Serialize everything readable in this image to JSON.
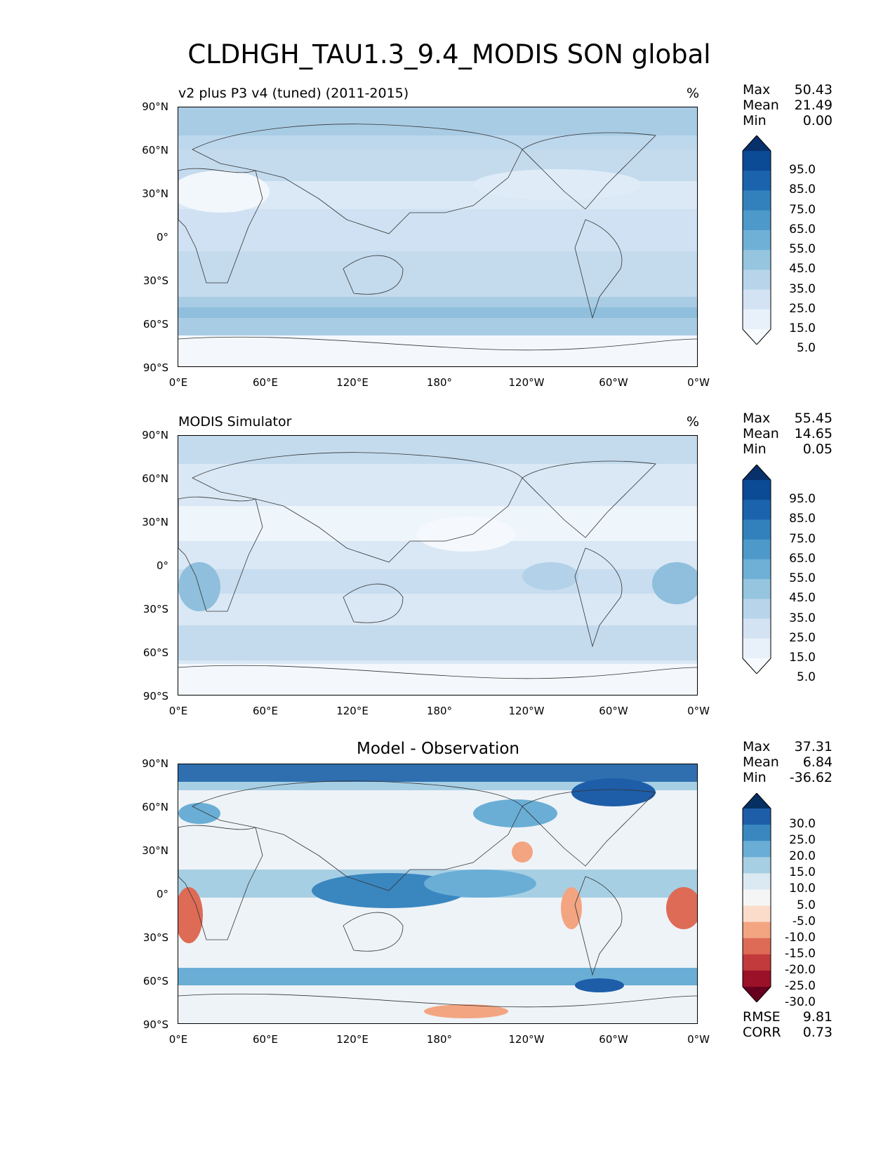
{
  "title": "CLDHGH_TAU1.3_9.4_MODIS SON global",
  "axes": {
    "lat_ticks": [
      "90°N",
      "60°N",
      "30°N",
      "0°",
      "30°S",
      "60°S",
      "90°S"
    ],
    "lon_ticks": [
      "0°E",
      "60°E",
      "120°E",
      "180°",
      "120°W",
      "60°W",
      "0°W"
    ]
  },
  "panels": [
    {
      "subtitle": "v2 plus P3 v4 (tuned) (2011-2015)",
      "units": "%",
      "stats": [
        {
          "label": "Max",
          "value": "50.43"
        },
        {
          "label": "Mean",
          "value": "21.49"
        },
        {
          "label": "Min",
          "value": "0.00"
        }
      ],
      "colorbar": {
        "labels": [
          "95.0",
          "85.0",
          "75.0",
          "65.0",
          "55.0",
          "45.0",
          "35.0",
          "25.0",
          "15.0",
          "5.0"
        ],
        "colors": [
          "#08306b",
          "#0b4a94",
          "#1b64ad",
          "#3281bd",
          "#4d99c9",
          "#6fb0d7",
          "#95c5df",
          "#b7d4ea",
          "#d3e3f3",
          "#e8f1fa",
          "#f7fbff"
        ]
      }
    },
    {
      "subtitle": "MODIS Simulator",
      "units": "%",
      "stats": [
        {
          "label": "Max",
          "value": "55.45"
        },
        {
          "label": "Mean",
          "value": "14.65"
        },
        {
          "label": "Min",
          "value": "0.05"
        }
      ],
      "colorbar": {
        "labels": [
          "95.0",
          "85.0",
          "75.0",
          "65.0",
          "55.0",
          "45.0",
          "35.0",
          "25.0",
          "15.0",
          "5.0"
        ],
        "colors": [
          "#08306b",
          "#0b4a94",
          "#1b64ad",
          "#3281bd",
          "#4d99c9",
          "#6fb0d7",
          "#95c5df",
          "#b7d4ea",
          "#d3e3f3",
          "#e8f1fa",
          "#f7fbff"
        ]
      }
    },
    {
      "subtitle": "Model - Observation",
      "units": "",
      "stats": [
        {
          "label": "Max",
          "value": "37.31"
        },
        {
          "label": "Mean",
          "value": "6.84"
        },
        {
          "label": "Min",
          "value": "-36.62"
        }
      ],
      "colorbar": {
        "labels": [
          "30.0",
          "25.0",
          "20.0",
          "15.0",
          "10.0",
          "5.0",
          "-5.0",
          "-10.0",
          "-15.0",
          "-20.0",
          "-25.0",
          "-30.0"
        ],
        "colors": [
          "#053061",
          "#1e5da8",
          "#3a87c0",
          "#6aaed6",
          "#a7cfe4",
          "#dbeaf2",
          "#f5f5f5",
          "#fbdccb",
          "#f3a582",
          "#dd6b56",
          "#c23a3b",
          "#9a1128",
          "#67001f"
        ]
      },
      "extra_stats": [
        {
          "label": "RMSE",
          "value": "9.81"
        },
        {
          "label": "CORR",
          "value": "0.73"
        }
      ]
    }
  ]
}
